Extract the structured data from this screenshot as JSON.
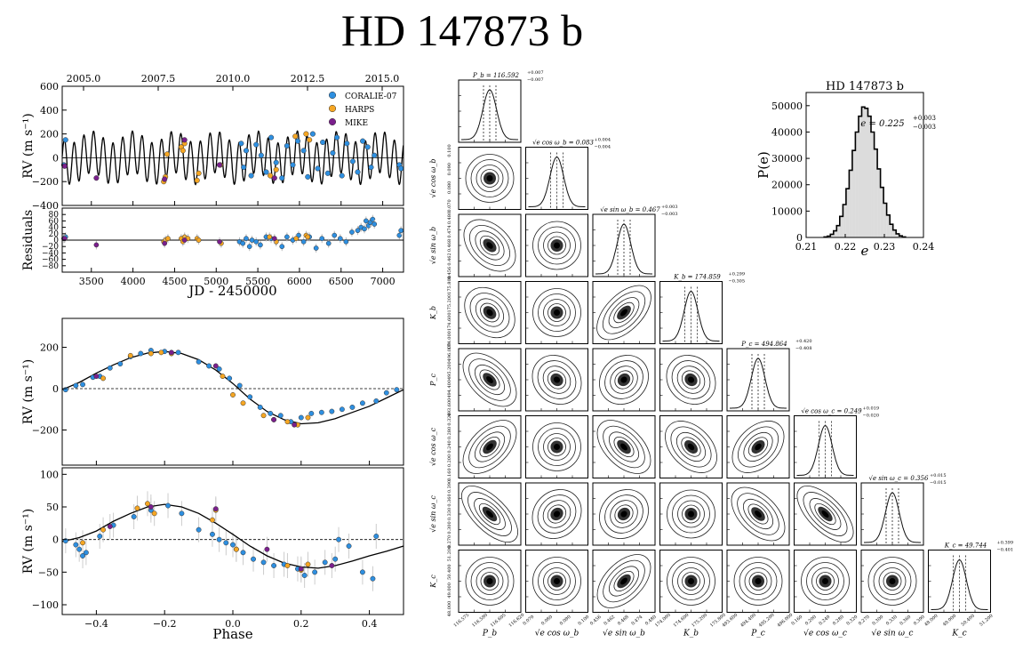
{
  "title": "HD 147873 b",
  "colors": {
    "coralie": "#2e8fe0",
    "harps": "#f5a623",
    "mike": "#7a1f8c",
    "hist_fill": "#dcdcdc"
  },
  "chart_data": [
    {
      "id": "rv-time",
      "type": "scatter",
      "title": "",
      "xlabel": "JD - 2450000",
      "ylabel": "RV (m s⁻¹)",
      "top_axis_label": "",
      "xlim": [
        3150,
        7250
      ],
      "ylim": [
        -400,
        600
      ],
      "xticks": [
        "3500",
        "4000",
        "4500",
        "5000",
        "5500",
        "6000",
        "6500",
        "7000"
      ],
      "top_ticks": [
        "2005.0",
        "2007.5",
        "2010.0",
        "2012.5",
        "2015.0"
      ],
      "yticks": [
        "600",
        "400",
        "200",
        "0",
        "−200",
        "−400"
      ],
      "legend": [
        "CORALIE-07",
        "HARPS",
        "MIKE"
      ],
      "legend_position": "top-right",
      "model": {
        "period_b": 116.592,
        "K_b": 174.859,
        "period_c": 494.864,
        "K_c": 49.744
      },
      "series": [
        {
          "name": "CORALIE-07",
          "x": [
            3170,
            3190,
            5300,
            5330,
            5360,
            5420,
            5480,
            5540,
            5600,
            5660,
            5720,
            5790,
            5850,
            5920,
            5980,
            6050,
            6100,
            6160,
            6220,
            6280,
            6340,
            6400,
            6450,
            6510,
            6570,
            6640,
            6700,
            6760,
            6820,
            6860,
            6900,
            7200,
            7220
          ],
          "y": [
            -60,
            150,
            120,
            -80,
            60,
            -150,
            110,
            20,
            -120,
            170,
            -40,
            -170,
            100,
            -60,
            140,
            60,
            -160,
            200,
            -90,
            130,
            -130,
            40,
            170,
            -150,
            120,
            -30,
            -120,
            140,
            90,
            -80,
            20,
            -60,
            -90
          ]
        },
        {
          "name": "HARPS",
          "x": [
            4370,
            4390,
            4410,
            4580,
            4600,
            4620,
            4770,
            4790,
            5050,
            5650,
            5720,
            5950,
            6080,
            6120
          ],
          "y": [
            -200,
            -160,
            30,
            90,
            60,
            120,
            -190,
            -130,
            -60,
            -150,
            -100,
            180,
            200,
            150
          ]
        },
        {
          "name": "MIKE",
          "x": [
            3180,
            3560,
            4380,
            4620,
            5040,
            5700
          ],
          "y": [
            -70,
            -170,
            -180,
            150,
            -60,
            -170
          ]
        }
      ]
    },
    {
      "id": "residuals",
      "type": "scatter",
      "ylabel": "Residuals",
      "xlim": [
        3150,
        7250
      ],
      "ylim": [
        -100,
        100
      ],
      "xticks": [
        "3500",
        "4000",
        "4500",
        "5000",
        "5500",
        "6000",
        "6500",
        "7000"
      ],
      "yticks": [
        "80",
        "60",
        "40",
        "20",
        "0",
        "−20",
        "−40",
        "−60",
        "−80"
      ],
      "series": [
        {
          "name": "CORALIE-07",
          "x": [
            3170,
            3190,
            5280,
            5320,
            5360,
            5400,
            5430,
            5480,
            5530,
            5600,
            5660,
            5720,
            5790,
            5850,
            5920,
            5990,
            6050,
            6120,
            6200,
            6270,
            6350,
            6420,
            6490,
            6560,
            6630,
            6700,
            6740,
            6780,
            6800,
            6830,
            6850,
            6880,
            6900,
            7200,
            7220
          ],
          "y": [
            5,
            10,
            -5,
            -10,
            5,
            -20,
            0,
            -5,
            -15,
            10,
            5,
            -5,
            -20,
            10,
            0,
            15,
            -5,
            10,
            -25,
            5,
            -10,
            15,
            5,
            -5,
            25,
            30,
            40,
            35,
            60,
            45,
            55,
            65,
            50,
            15,
            30
          ]
        },
        {
          "name": "HARPS",
          "x": [
            4370,
            4390,
            4420,
            4580,
            4600,
            4620,
            4660,
            4770,
            4790,
            5060,
            5640,
            5720,
            5960,
            6080,
            6100
          ],
          "y": [
            -5,
            0,
            5,
            5,
            -5,
            10,
            5,
            5,
            0,
            -10,
            10,
            -5,
            5,
            15,
            10
          ]
        },
        {
          "name": "MIKE",
          "x": [
            3180,
            3560,
            4380,
            4620,
            5040,
            5700
          ],
          "y": [
            5,
            -15,
            -10,
            0,
            -5,
            5
          ]
        }
      ]
    },
    {
      "id": "phase-b",
      "type": "scatter",
      "ylabel": "RV (m s⁻¹)",
      "xlim": [
        -0.5,
        0.5
      ],
      "ylim": [
        -370,
        340
      ],
      "yticks": [
        "200",
        "0",
        "−200"
      ],
      "ytick_values": [
        200,
        0,
        -200
      ],
      "model": "keplerian",
      "curve_x": [
        -0.5,
        -0.45,
        -0.4,
        -0.35,
        -0.3,
        -0.25,
        -0.2,
        -0.15,
        -0.1,
        -0.05,
        0.0,
        0.05,
        0.1,
        0.15,
        0.2,
        0.25,
        0.3,
        0.35,
        0.4,
        0.45,
        0.5
      ],
      "curve_y": [
        -5,
        30,
        75,
        115,
        150,
        172,
        180,
        170,
        140,
        90,
        25,
        -50,
        -110,
        -150,
        -170,
        -165,
        -145,
        -115,
        -85,
        -45,
        -5
      ],
      "series": [
        {
          "name": "CORALIE-07",
          "x": [
            -0.49,
            -0.46,
            -0.44,
            -0.41,
            -0.39,
            -0.36,
            -0.33,
            -0.3,
            -0.27,
            -0.24,
            -0.2,
            -0.16,
            -0.1,
            -0.07,
            -0.04,
            -0.01,
            0.02,
            0.05,
            0.08,
            0.11,
            0.14,
            0.17,
            0.2,
            0.23,
            0.26,
            0.29,
            0.32,
            0.35,
            0.38,
            0.42,
            0.45,
            0.48
          ],
          "y": [
            -5,
            15,
            20,
            55,
            60,
            100,
            120,
            155,
            170,
            185,
            180,
            175,
            130,
            110,
            95,
            50,
            15,
            -40,
            -90,
            -120,
            -130,
            -160,
            -140,
            -120,
            -115,
            -110,
            -100,
            -90,
            -70,
            -60,
            -20,
            -5
          ]
        },
        {
          "name": "HARPS",
          "x": [
            -0.38,
            -0.3,
            -0.24,
            -0.21,
            -0.18,
            -0.03,
            0.0,
            0.03,
            0.09,
            0.12,
            0.16,
            0.19,
            0.22
          ],
          "y": [
            50,
            160,
            170,
            175,
            170,
            60,
            -30,
            -70,
            -130,
            -150,
            -160,
            -175,
            -140
          ]
        },
        {
          "name": "MIKE",
          "x": [
            -0.4,
            -0.18,
            -0.05,
            0.12,
            0.18
          ],
          "y": [
            60,
            175,
            110,
            -150,
            -175
          ]
        }
      ]
    },
    {
      "id": "phase-c",
      "type": "scatter",
      "ylabel": "RV (m s⁻¹)",
      "xlabel": "Phase",
      "xlim": [
        -0.5,
        0.5
      ],
      "ylim": [
        -115,
        110
      ],
      "xticks": [
        "−0.4",
        "−0.2",
        "0.0",
        "0.2",
        "0.4"
      ],
      "xtick_values": [
        -0.4,
        -0.2,
        0.0,
        0.2,
        0.4
      ],
      "yticks": [
        "100",
        "50",
        "0",
        "−50",
        "−100"
      ],
      "ytick_values": [
        100,
        50,
        0,
        -50,
        -100
      ],
      "curve_x": [
        -0.5,
        -0.45,
        -0.4,
        -0.35,
        -0.3,
        -0.25,
        -0.2,
        -0.15,
        -0.1,
        -0.05,
        0.0,
        0.05,
        0.1,
        0.15,
        0.2,
        0.25,
        0.3,
        0.35,
        0.4,
        0.45,
        0.5
      ],
      "curve_y": [
        -3,
        3,
        13,
        28,
        40,
        50,
        54,
        50,
        40,
        25,
        8,
        -10,
        -25,
        -36,
        -42,
        -44,
        -40,
        -33,
        -25,
        -18,
        -10
      ],
      "series": [
        {
          "name": "CORALIE-07",
          "x": [
            -0.49,
            -0.46,
            -0.45,
            -0.44,
            -0.43,
            -0.39,
            -0.35,
            -0.29,
            -0.24,
            -0.19,
            -0.15,
            -0.1,
            -0.06,
            -0.04,
            -0.02,
            0.0,
            0.01,
            0.03,
            0.06,
            0.09,
            0.12,
            0.15,
            0.19,
            0.21,
            0.24,
            0.27,
            0.3,
            0.31,
            0.34,
            0.38,
            0.41,
            0.42
          ],
          "y": [
            -2,
            -8,
            -15,
            -25,
            -20,
            5,
            22,
            35,
            45,
            52,
            40,
            15,
            8,
            0,
            -5,
            -8,
            -15,
            -20,
            -30,
            -35,
            -40,
            -38,
            -45,
            -55,
            -50,
            -35,
            -30,
            0,
            -10,
            -50,
            -60,
            5
          ]
        },
        {
          "name": "HARPS",
          "x": [
            -0.44,
            -0.38,
            -0.28,
            -0.25,
            -0.23,
            -0.06,
            -0.05,
            0.01,
            0.16,
            0.2,
            0.22
          ],
          "y": [
            -5,
            15,
            48,
            55,
            40,
            30,
            45,
            -15,
            -40,
            -47,
            -38
          ]
        },
        {
          "name": "MIKE",
          "x": [
            -0.36,
            -0.24,
            -0.05,
            0.1,
            0.2,
            0.29
          ],
          "y": [
            20,
            50,
            47,
            -15,
            -45,
            -40
          ]
        }
      ]
    },
    {
      "id": "ecc-hist",
      "type": "bar",
      "title": "HD 147873 b",
      "xlabel": "e",
      "ylabel": "P(e)",
      "xlim": [
        0.21,
        0.24
      ],
      "ylim": [
        0,
        55000
      ],
      "xticks": [
        "0.21",
        "0.22",
        "0.23",
        "0.24"
      ],
      "xtick_values": [
        0.21,
        0.22,
        0.23,
        0.24
      ],
      "yticks": [
        "50000",
        "40000",
        "30000",
        "20000",
        "10000",
        "0"
      ],
      "ytick_values": [
        50000,
        40000,
        30000,
        20000,
        10000,
        0
      ],
      "annotation": "e = 0.225",
      "annotation_err": {
        "plus": "+0.003",
        "minus": "−0.003"
      },
      "categories": [
        0.215,
        0.2158,
        0.2166,
        0.2174,
        0.2182,
        0.219,
        0.2198,
        0.2206,
        0.2214,
        0.2222,
        0.223,
        0.2238,
        0.2246,
        0.2254,
        0.2262,
        0.227,
        0.2278,
        0.2286,
        0.2294,
        0.2302,
        0.231,
        0.2318,
        0.2326,
        0.2334,
        0.2342,
        0.235
      ],
      "values": [
        200,
        500,
        1200,
        2500,
        4500,
        8000,
        12500,
        18500,
        25500,
        33000,
        40000,
        46000,
        49500,
        49000,
        46000,
        40000,
        33500,
        26000,
        19000,
        13000,
        8500,
        5000,
        2800,
        1400,
        600,
        200
      ]
    },
    {
      "id": "corner",
      "type": "heatmap",
      "parameters": [
        {
          "symbol": "P_b",
          "axis_label": "P_b",
          "value": "116.592",
          "plus": "+0.007",
          "minus": "−0.007",
          "ticks": [
            "116.575",
            "116.590",
            "116.605",
            "116.620"
          ]
        },
        {
          "symbol": "√e cos ω_b",
          "axis_label": "√e cos ω_b",
          "value": "0.083",
          "plus": "+0.004",
          "minus": "−0.004",
          "ticks": [
            "0.070",
            "0.080",
            "0.090",
            "0.100"
          ]
        },
        {
          "symbol": "√e sin ω_b",
          "axis_label": "√e sin ω_b",
          "value": "0.467",
          "plus": "+0.003",
          "minus": "−0.003",
          "ticks": [
            "0.456",
            "0.462",
            "0.468",
            "0.474",
            "0.480"
          ]
        },
        {
          "symbol": "K_b",
          "axis_label": "K_b",
          "value": "174.859",
          "plus": "+0.299",
          "minus": "−0.305",
          "ticks": [
            "174.000",
            "174.600",
            "175.200",
            "175.800"
          ]
        },
        {
          "symbol": "P_c",
          "axis_label": "P_c",
          "value": "494.864",
          "plus": "+0.420",
          "minus": "−0.408",
          "ticks": [
            "493.600",
            "494.400",
            "495.200",
            "496.000"
          ]
        },
        {
          "symbol": "√e cos ω_c",
          "axis_label": "√e cos ω_c",
          "value": "0.249",
          "plus": "+0.019",
          "minus": "−0.020",
          "ticks": [
            "0.160",
            "0.200",
            "0.240",
            "0.280",
            "0.320"
          ]
        },
        {
          "symbol": "√e sin ω_c",
          "axis_label": "√e sin ω_c",
          "value": "0.356",
          "plus": "+0.015",
          "minus": "−0.015",
          "ticks": [
            "0.270",
            "0.300",
            "0.330",
            "0.360",
            "0.390"
          ]
        },
        {
          "symbol": "K_c",
          "axis_label": "K_c",
          "value": "49.744",
          "plus": "+0.399",
          "minus": "−0.401",
          "ticks": [
            "48.000",
            "49.000",
            "50.400",
            "51.200"
          ]
        }
      ],
      "correlations": [
        [
          0
        ],
        [
          0.0,
          0
        ],
        [
          -0.3,
          0.0,
          0
        ],
        [
          -0.2,
          0.0,
          0.45,
          0
        ],
        [
          -0.4,
          -0.1,
          0.1,
          -0.1,
          0
        ],
        [
          0.4,
          0.0,
          -0.4,
          -0.3,
          0.3,
          0
        ],
        [
          -0.55,
          0.1,
          0.1,
          0.0,
          -0.4,
          -0.55,
          0
        ],
        [
          0.0,
          0.0,
          0.4,
          0.0,
          0.0,
          0.0,
          0.0,
          0
        ]
      ]
    }
  ]
}
